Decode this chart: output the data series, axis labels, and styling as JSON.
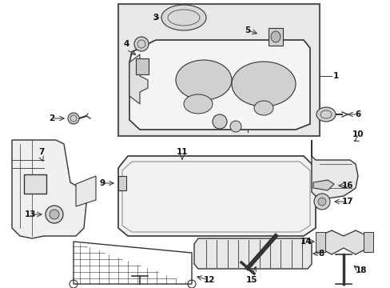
{
  "bg_color": "#ffffff",
  "line_color": "#333333",
  "fill_light": "#e8e8e8",
  "fill_mid": "#d0d0d0",
  "fill_dark": "#aaaaaa",
  "label_fontsize": 7.5,
  "figsize": [
    4.89,
    3.6
  ],
  "dpi": 100
}
